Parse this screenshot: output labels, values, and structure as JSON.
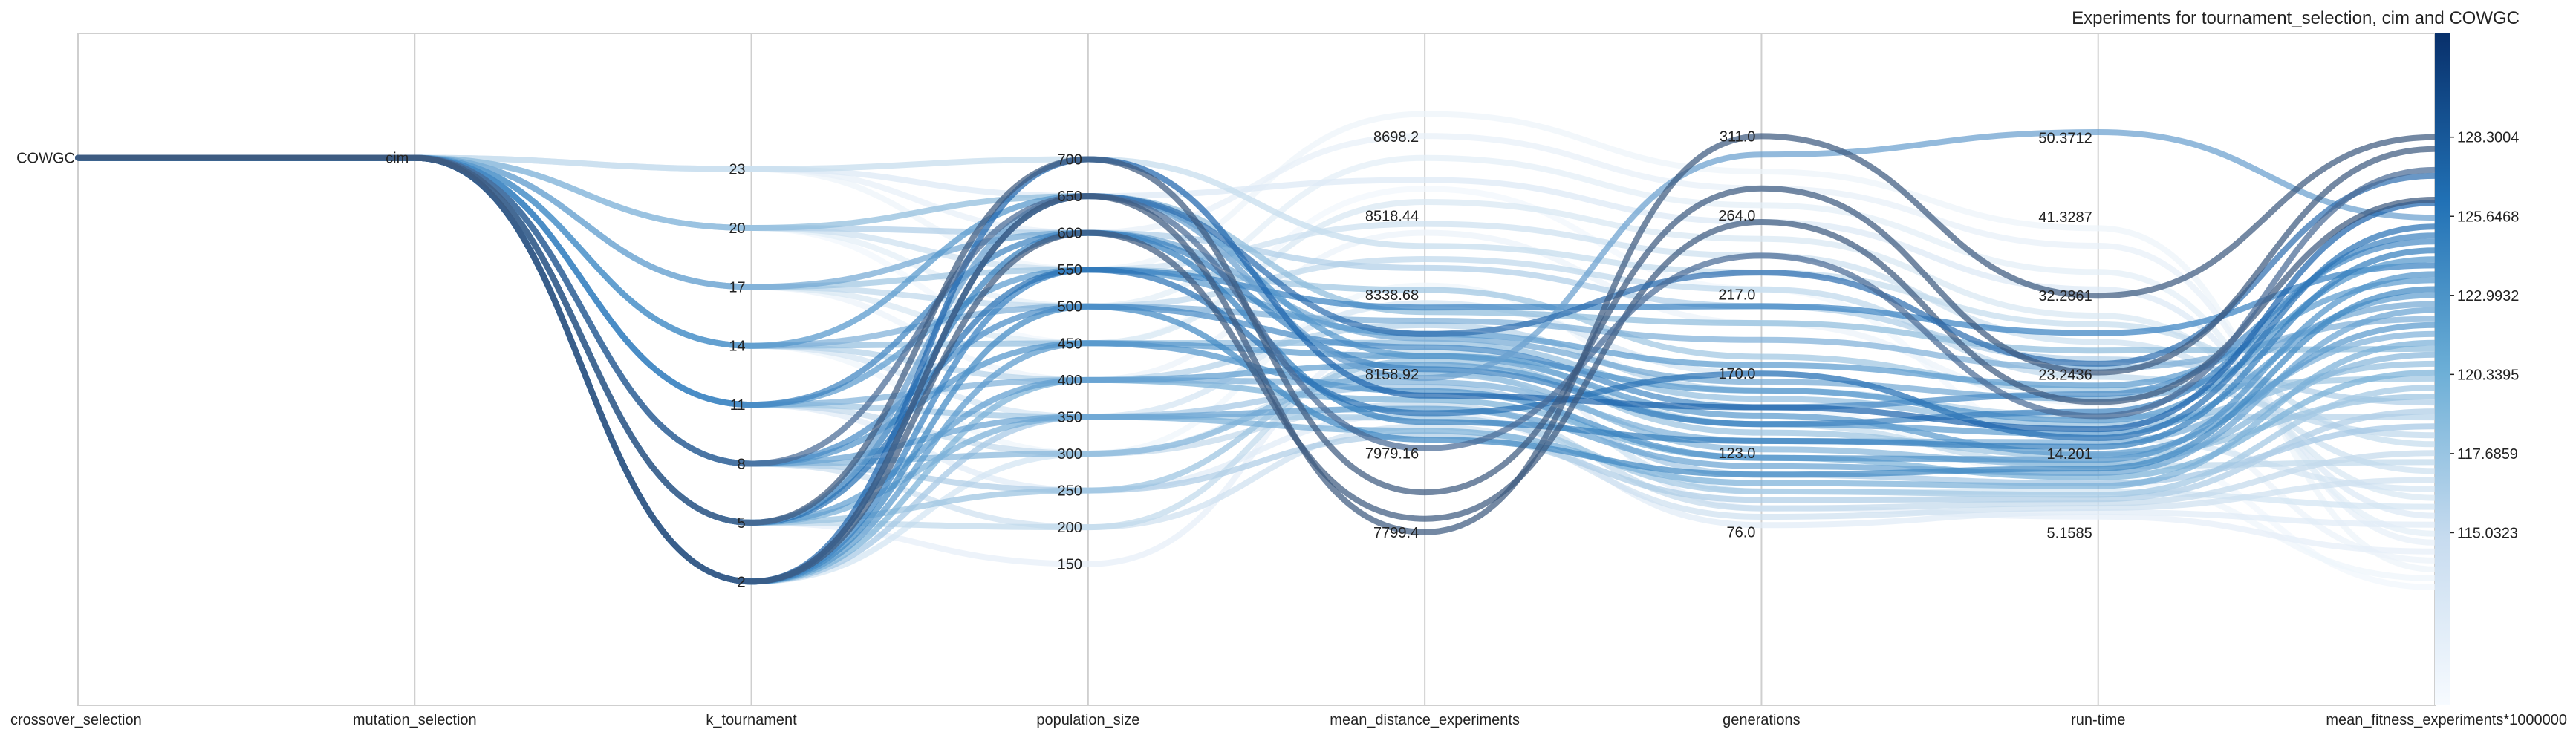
{
  "chart_data": {
    "type": "parallel-coordinates",
    "title": "Experiments for tournament_selection, cim and COWGC",
    "axes": [
      {
        "name": "crossover_selection",
        "kind": "category",
        "ticks": [
          {
            "label": "COWGC",
            "value": 0
          }
        ],
        "range": [
          -4.4,
          1.0
        ]
      },
      {
        "name": "mutation_selection",
        "kind": "category",
        "ticks": [
          {
            "label": "cim",
            "value": 0
          }
        ],
        "range": [
          -4.4,
          1.0
        ]
      },
      {
        "name": "k_tournament",
        "kind": "numeric",
        "ticks": [
          {
            "label": "2",
            "value": 2
          },
          {
            "label": "5",
            "value": 5
          },
          {
            "label": "8",
            "value": 8
          },
          {
            "label": "11",
            "value": 11
          },
          {
            "label": "14",
            "value": 14
          },
          {
            "label": "17",
            "value": 17
          },
          {
            "label": "20",
            "value": 20
          },
          {
            "label": "23",
            "value": 23
          }
        ],
        "range": [
          -4.3,
          29.9
        ]
      },
      {
        "name": "population_size",
        "kind": "numeric",
        "ticks": [
          {
            "label": "150",
            "value": 150
          },
          {
            "label": "200",
            "value": 200
          },
          {
            "label": "250",
            "value": 250
          },
          {
            "label": "300",
            "value": 300
          },
          {
            "label": "350",
            "value": 350
          },
          {
            "label": "400",
            "value": 400
          },
          {
            "label": "450",
            "value": 450
          },
          {
            "label": "500",
            "value": 500
          },
          {
            "label": "550",
            "value": 550
          },
          {
            "label": "600",
            "value": 600
          },
          {
            "label": "650",
            "value": 650
          },
          {
            "label": "700",
            "value": 700
          }
        ],
        "range": [
          -42,
          871
        ]
      },
      {
        "name": "mean_distance_experiments",
        "kind": "numeric",
        "ticks": [
          {
            "label": "7799.4",
            "value": 7799.4
          },
          {
            "label": "7979.16",
            "value": 7979.16
          },
          {
            "label": "8158.92",
            "value": 8158.92
          },
          {
            "label": "8338.68",
            "value": 8338.68
          },
          {
            "label": "8518.44",
            "value": 8518.44
          },
          {
            "label": "8698.2",
            "value": 8698.2
          }
        ],
        "range": [
          7406,
          8933
        ]
      },
      {
        "name": "generations",
        "kind": "numeric",
        "ticks": [
          {
            "label": "76.0",
            "value": 76
          },
          {
            "label": "123.0",
            "value": 123
          },
          {
            "label": "170.0",
            "value": 170
          },
          {
            "label": "217.0",
            "value": 217
          },
          {
            "label": "264.0",
            "value": 264
          },
          {
            "label": "311.0",
            "value": 311
          }
        ],
        "range": [
          -27,
          372
        ]
      },
      {
        "name": "run-time",
        "kind": "numeric",
        "ticks": [
          {
            "label": "5.1585",
            "value": 5.1585
          },
          {
            "label": "14.201",
            "value": 14.201
          },
          {
            "label": "23.2436",
            "value": 23.2436
          },
          {
            "label": "32.2861",
            "value": 32.2861
          },
          {
            "label": "41.3287",
            "value": 41.3287
          },
          {
            "label": "50.3712",
            "value": 50.3712
          }
        ],
        "range": [
          -14.6,
          62.3
        ]
      },
      {
        "name": "mean_fitness_experiments*1000000",
        "kind": "numeric",
        "ticks": [
          {
            "label": "115.0323",
            "value": 115.0323
          },
          {
            "label": "117.6859",
            "value": 117.6859
          },
          {
            "label": "120.3395",
            "value": 120.3395
          },
          {
            "label": "122.9932",
            "value": 122.9932
          },
          {
            "label": "125.6468",
            "value": 125.6468
          },
          {
            "label": "128.3004",
            "value": 128.3004
          }
        ],
        "range": [
          109.24,
          131.78
        ]
      }
    ],
    "colormap": {
      "name": "Blues",
      "light": "#f7fbff",
      "dark": "#08306b",
      "min": 112.9,
      "max": 131.8
    },
    "grid": true,
    "lines": [
      {
        "values": [
          0,
          0,
          2,
          650,
          7799.4,
          311,
          32.2861,
          128.3004
        ],
        "color": "#3d5a80"
      },
      {
        "values": [
          0,
          0,
          5,
          700,
          7890,
          280,
          23.5,
          127.9
        ],
        "color": "#3d5a80"
      },
      {
        "values": [
          0,
          0,
          2,
          600,
          7830,
          260,
          20.1,
          126.2
        ],
        "color": "#3d5a80"
      },
      {
        "values": [
          0,
          0,
          8,
          650,
          7990,
          240,
          18.5,
          127.2
        ],
        "color": "#4a6b95"
      },
      {
        "values": [
          0,
          0,
          2,
          650,
          8250,
          230,
          24.5,
          127.0
        ],
        "color": "#2f6fb0"
      },
      {
        "values": [
          0,
          0,
          2,
          700,
          8110,
          150,
          17.0,
          126.1
        ],
        "color": "#1f65ad"
      },
      {
        "values": [
          0,
          0,
          5,
          650,
          8150,
          300,
          51.0,
          125.6
        ],
        "color": "#6a9fcf"
      },
      {
        "values": [
          0,
          0,
          5,
          550,
          8070,
          170,
          16.0,
          125.3
        ],
        "color": "#2b73b5"
      },
      {
        "values": [
          0,
          0,
          11,
          600,
          8170,
          140,
          19.0,
          125.0
        ],
        "color": "#3e83c0"
      },
      {
        "values": [
          0,
          0,
          8,
          500,
          8220,
          150,
          21.0,
          124.8
        ],
        "color": "#4a8cc6"
      },
      {
        "values": [
          0,
          0,
          5,
          600,
          8050,
          130,
          15.0,
          124.5
        ],
        "color": "#3680be"
      },
      {
        "values": [
          0,
          0,
          14,
          650,
          8200,
          160,
          18.0,
          124.2
        ],
        "color": "#5597cc"
      },
      {
        "values": [
          0,
          0,
          2,
          550,
          8310,
          210,
          28.0,
          124.0
        ],
        "color": "#3a82c2"
      },
      {
        "values": [
          0,
          0,
          8,
          450,
          8120,
          120,
          13.5,
          123.7
        ],
        "color": "#5294ca"
      },
      {
        "values": [
          0,
          0,
          11,
          550,
          8250,
          175,
          22.0,
          123.5
        ],
        "color": "#5c9bcf"
      },
      {
        "values": [
          0,
          0,
          2,
          500,
          8010,
          110,
          12.5,
          123.2
        ],
        "color": "#4189c4"
      },
      {
        "values": [
          0,
          0,
          5,
          400,
          8180,
          140,
          16.5,
          123.0
        ],
        "color": "#5f9ed0"
      },
      {
        "values": [
          0,
          0,
          17,
          600,
          8240,
          165,
          20.5,
          122.7
        ],
        "color": "#74a9d4"
      },
      {
        "values": [
          0,
          0,
          8,
          350,
          8080,
          115,
          12.0,
          122.5
        ],
        "color": "#6aa4d2"
      },
      {
        "values": [
          0,
          0,
          14,
          500,
          8280,
          190,
          24.0,
          122.2
        ],
        "color": "#7fb0d8"
      },
      {
        "values": [
          0,
          0,
          2,
          450,
          8200,
          145,
          14.2,
          122.0
        ],
        "color": "#5a9acd"
      },
      {
        "values": [
          0,
          0,
          11,
          400,
          8140,
          130,
          15.5,
          121.7
        ],
        "color": "#80b2d9"
      },
      {
        "values": [
          0,
          0,
          5,
          350,
          8030,
          105,
          10.5,
          121.4
        ],
        "color": "#7ab0d8"
      },
      {
        "values": [
          0,
          0,
          20,
          650,
          8300,
          200,
          26.0,
          121.2
        ],
        "color": "#8fbcdd"
      },
      {
        "values": [
          0,
          0,
          8,
          300,
          8160,
          125,
          13.0,
          121.0
        ],
        "color": "#88b7db"
      },
      {
        "values": [
          0,
          0,
          14,
          450,
          8230,
          155,
          17.5,
          120.7
        ],
        "color": "#94bfdf"
      },
      {
        "values": [
          0,
          0,
          2,
          400,
          8100,
          120,
          11.5,
          120.4
        ],
        "color": "#7ab1d8"
      },
      {
        "values": [
          0,
          0,
          17,
          550,
          8350,
          180,
          21.5,
          120.2
        ],
        "color": "#a0c6e2"
      },
      {
        "values": [
          0,
          0,
          11,
          350,
          8060,
          100,
          9.5,
          119.9
        ],
        "color": "#a2c7e3"
      },
      {
        "values": [
          0,
          0,
          5,
          250,
          8190,
          135,
          14.0,
          119.6
        ],
        "color": "#9bc3e1"
      },
      {
        "values": [
          0,
          0,
          20,
          600,
          8400,
          210,
          25.0,
          119.4
        ],
        "color": "#b0cfe7"
      },
      {
        "values": [
          0,
          0,
          8,
          250,
          8020,
          95,
          9.0,
          119.1
        ],
        "color": "#aecde6"
      },
      {
        "values": [
          0,
          0,
          14,
          400,
          8270,
          160,
          18.5,
          118.9
        ],
        "color": "#b6d3e9"
      },
      {
        "values": [
          0,
          0,
          2,
          350,
          8130,
          110,
          10.8,
          118.6
        ],
        "color": "#a5c8e4"
      },
      {
        "values": [
          0,
          0,
          17,
          500,
          8420,
          220,
          23.0,
          118.3
        ],
        "color": "#bfd8eb"
      },
      {
        "values": [
          0,
          0,
          23,
          700,
          8450,
          230,
          29.0,
          118.0
        ],
        "color": "#c5dced"
      },
      {
        "values": [
          0,
          0,
          11,
          300,
          8090,
          90,
          8.5,
          117.7
        ],
        "color": "#c3daec"
      },
      {
        "values": [
          0,
          0,
          5,
          200,
          8210,
          140,
          12.8,
          117.4
        ],
        "color": "#c0d9ec"
      },
      {
        "values": [
          0,
          0,
          20,
          550,
          8500,
          240,
          27.0,
          117.1
        ],
        "color": "#cde0f0"
      },
      {
        "values": [
          0,
          0,
          8,
          200,
          8040,
          85,
          8.0,
          116.8
        ],
        "color": "#cfe1f0"
      },
      {
        "values": [
          0,
          0,
          14,
          350,
          8320,
          170,
          16.0,
          116.5
        ],
        "color": "#d4e4f2"
      },
      {
        "values": [
          0,
          0,
          17,
          450,
          8550,
          250,
          30.0,
          116.2
        ],
        "color": "#d8e7f3"
      },
      {
        "values": [
          0,
          0,
          2,
          300,
          8170,
          100,
          9.8,
          115.9
        ],
        "color": "#d3e4f2"
      },
      {
        "values": [
          0,
          0,
          23,
          650,
          8600,
          260,
          33.0,
          115.6
        ],
        "color": "#dde9f5"
      },
      {
        "values": [
          0,
          0,
          11,
          250,
          8070,
          80,
          7.5,
          115.3
        ],
        "color": "#e0ecf6"
      },
      {
        "values": [
          0,
          0,
          20,
          500,
          8650,
          270,
          35.0,
          115.0
        ],
        "color": "#e3eef7"
      },
      {
        "values": [
          0,
          0,
          23,
          600,
          8700,
          280,
          38.0,
          114.7
        ],
        "color": "#e7f0f8"
      },
      {
        "values": [
          0,
          0,
          5,
          150,
          8250,
          90,
          7.0,
          114.4
        ],
        "color": "#e6eff8"
      },
      {
        "values": [
          0,
          0,
          17,
          400,
          8480,
          200,
          20.0,
          114.1
        ],
        "color": "#ebf3fa"
      },
      {
        "values": [
          0,
          0,
          23,
          550,
          8750,
          290,
          40.0,
          113.8
        ],
        "color": "#edf4fa"
      },
      {
        "values": [
          0,
          0,
          14,
          300,
          8360,
          150,
          11.0,
          113.5
        ],
        "color": "#eff5fb"
      },
      {
        "values": [
          0,
          0,
          20,
          450,
          8580,
          220,
          15.0,
          113.2
        ],
        "color": "#f1f6fc"
      }
    ]
  }
}
